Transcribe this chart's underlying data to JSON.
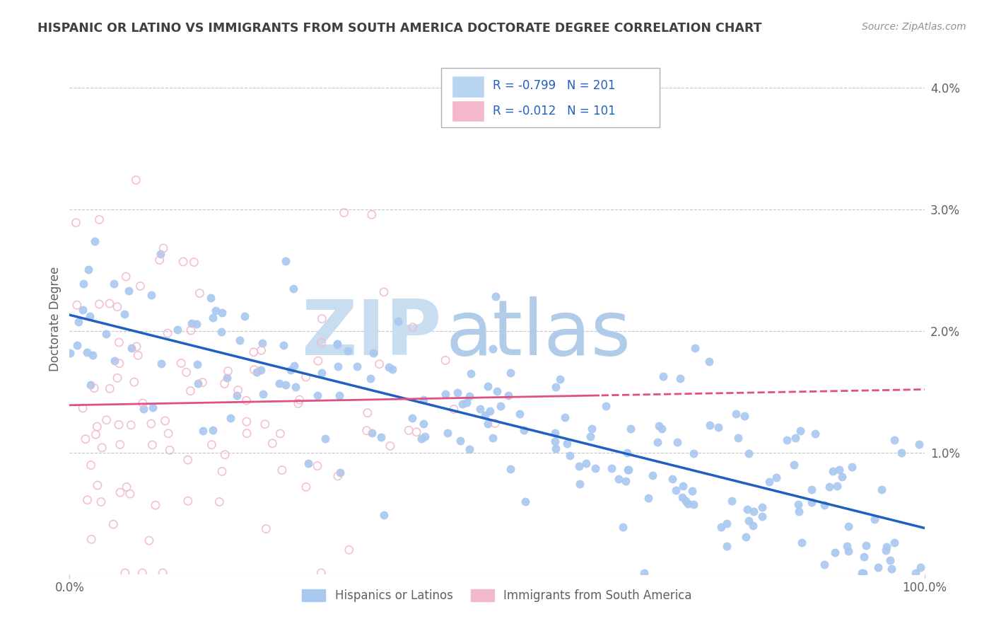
{
  "title": "HISPANIC OR LATINO VS IMMIGRANTS FROM SOUTH AMERICA DOCTORATE DEGREE CORRELATION CHART",
  "source": "Source: ZipAtlas.com",
  "ylabel": "Doctorate Degree",
  "legend_blue_label": "Hispanics or Latinos",
  "legend_pink_label": "Immigrants from South America",
  "R_blue": -0.799,
  "N_blue": 201,
  "R_pink": -0.012,
  "N_pink": 101,
  "blue_scatter_color": "#a8c8f0",
  "pink_scatter_color": "#f4b8ce",
  "blue_line_color": "#2060c0",
  "pink_line_color": "#e05080",
  "blue_legend_fill": "#b8d4f0",
  "pink_legend_fill": "#f4b8ce",
  "background_color": "#ffffff",
  "grid_color": "#c8c8c8",
  "title_color": "#404040",
  "source_color": "#909090",
  "axis_label_color": "#606060",
  "legend_r_color": "#e05080",
  "legend_n_color": "#2060c0",
  "watermark_zip_color": "#c8ddf0",
  "watermark_atlas_color": "#b0cce8",
  "xlim": [
    0.0,
    1.0
  ],
  "ylim": [
    0.0,
    0.042
  ]
}
